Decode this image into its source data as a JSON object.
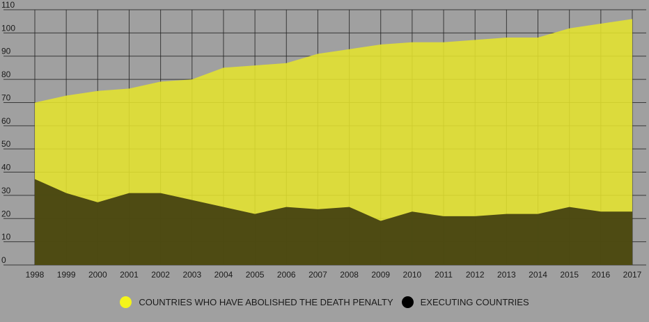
{
  "chart_data": {
    "type": "area",
    "x": [
      "1998",
      "1999",
      "2000",
      "2001",
      "2002",
      "2003",
      "2004",
      "2005",
      "2006",
      "2007",
      "2008",
      "2009",
      "2010",
      "2011",
      "2012",
      "2013",
      "2014",
      "2015",
      "2016",
      "2017"
    ],
    "series": [
      {
        "name": "COUNTRIES WHO HAVE ABOLISHED THE DEATH PENALTY",
        "color": "#e4e22e",
        "values": [
          70,
          73,
          75,
          76,
          79,
          80,
          85,
          86,
          87,
          91,
          93,
          95,
          96,
          96,
          97,
          98,
          98,
          102,
          104,
          106
        ]
      },
      {
        "name": "EXECUTING COUNTRIES",
        "color": "#413f10",
        "values": [
          37,
          31,
          27,
          31,
          31,
          28,
          25,
          22,
          25,
          24,
          25,
          19,
          23,
          21,
          21,
          22,
          22,
          25,
          23,
          23
        ]
      }
    ],
    "ylim": [
      0,
      110
    ],
    "yticks": [
      0,
      10,
      20,
      30,
      40,
      50,
      60,
      70,
      80,
      90,
      100,
      110
    ],
    "grid": true,
    "legend": "bottom-center",
    "title": "",
    "xlabel": "",
    "ylabel": "",
    "background_color": "#a0a0a0",
    "grid_color": "#262626",
    "legend_marker_colors": [
      "#f4f41a",
      "#000000"
    ]
  }
}
